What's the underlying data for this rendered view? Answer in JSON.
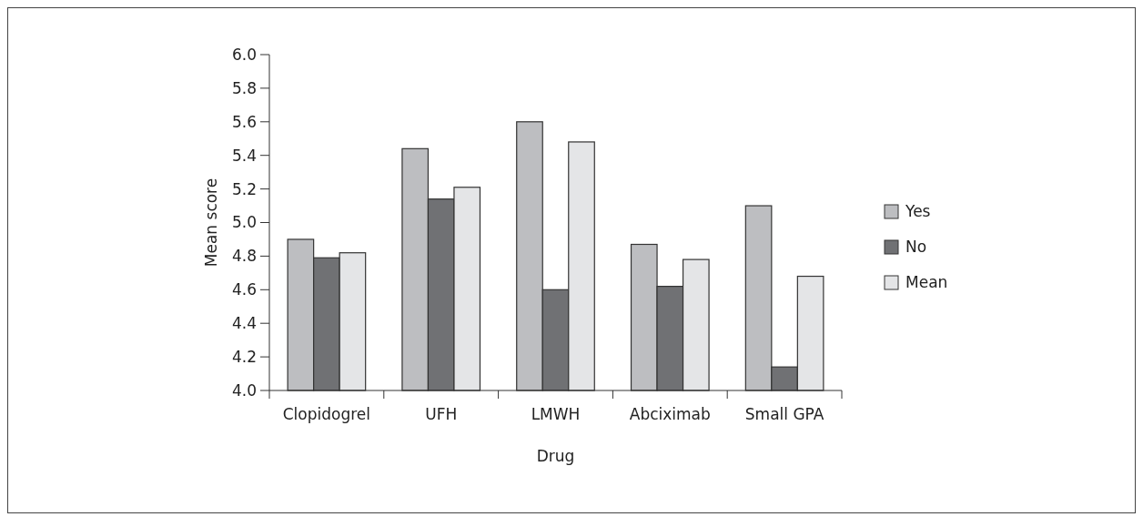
{
  "chart_data": {
    "type": "bar",
    "xlabel": "Drug",
    "ylabel": "Mean score",
    "categories": [
      "Clopidogrel",
      "UFH",
      "LMWH",
      "Abciximab",
      "Small GPA"
    ],
    "series": [
      {
        "name": "Yes",
        "color": "#bdbec1",
        "values": [
          4.9,
          5.44,
          5.6,
          4.87,
          5.1
        ]
      },
      {
        "name": "No",
        "color": "#707174",
        "values": [
          4.79,
          5.14,
          4.6,
          4.62,
          4.14
        ]
      },
      {
        "name": "Mean",
        "color": "#e4e5e7",
        "values": [
          4.82,
          5.21,
          5.48,
          4.78,
          4.68
        ]
      }
    ],
    "ylim": [
      4.0,
      6.0
    ],
    "yticks": [
      {
        "value": 4.0,
        "label": "4.0"
      },
      {
        "value": 4.2,
        "label": "4.2"
      },
      {
        "value": 4.4,
        "label": "4.4"
      },
      {
        "value": 4.6,
        "label": "4.6"
      },
      {
        "value": 4.8,
        "label": "4.8"
      },
      {
        "value": 5.0,
        "label": "5.0"
      },
      {
        "value": 5.2,
        "label": "5.2"
      },
      {
        "value": 5.4,
        "label": "5.4"
      },
      {
        "value": 5.6,
        "label": "5.6"
      },
      {
        "value": 5.8,
        "label": "5.8"
      },
      {
        "value": 6.0,
        "label": "6.0"
      }
    ],
    "grid": false,
    "legend": "right"
  }
}
